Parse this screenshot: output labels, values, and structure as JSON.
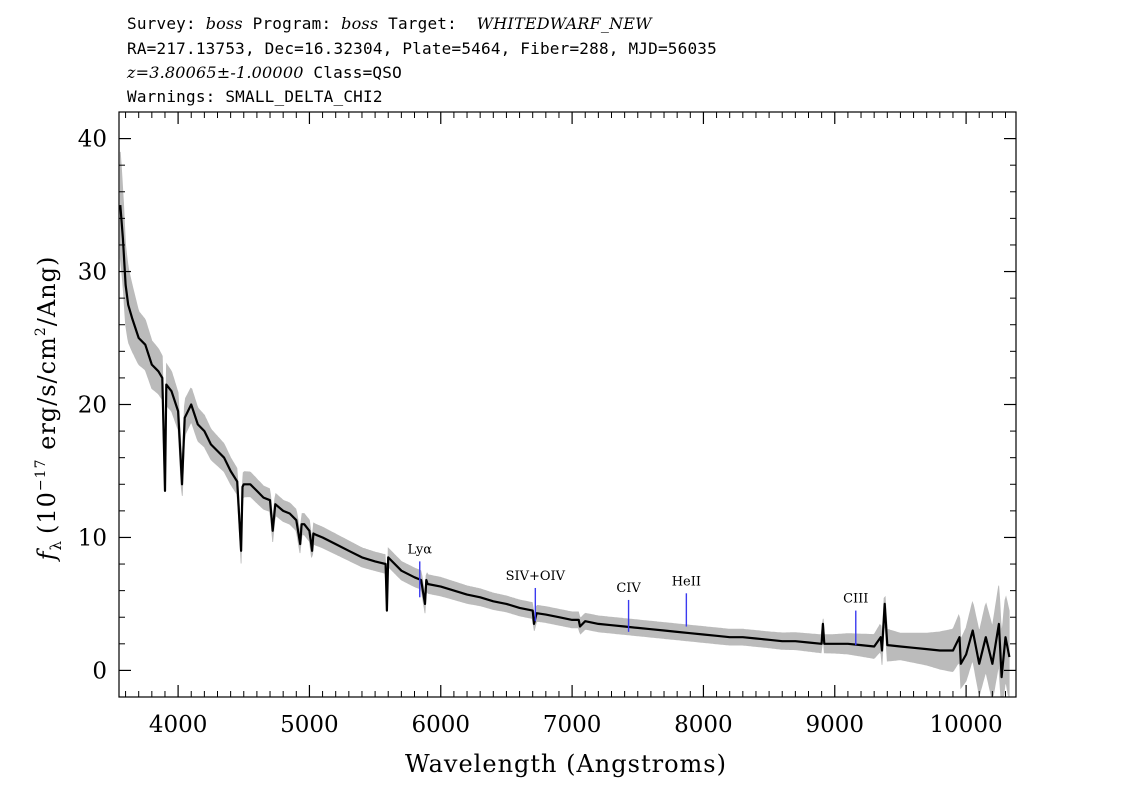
{
  "header": {
    "line1": {
      "survey_label": "Survey:",
      "survey_value": "boss",
      "program_label": "Program:",
      "program_value": "boss",
      "target_label": "Target:",
      "target_value": "WHITEDWARF_NEW"
    },
    "line2": "RA=217.13753, Dec=16.32304, Plate=5464, Fiber=288, MJD=56035",
    "line3": {
      "z_text": "z=3.80065±-1.00000",
      "class_text": "Class=QSO"
    },
    "line4": "Warnings: SMALL_DELTA_CHI2"
  },
  "chart_data": {
    "type": "line",
    "xlabel": "Wavelength (Angstroms)",
    "ylabel_parts": {
      "f": "f",
      "sub": "λ",
      "pre": "(10",
      "exp1": "−17",
      "mid": " erg/s/cm",
      "exp2": "2",
      "post": "/Ang)"
    },
    "xlim": [
      3550,
      10380
    ],
    "ylim": [
      -2,
      42
    ],
    "xticks": [
      4000,
      5000,
      6000,
      7000,
      8000,
      9000,
      10000
    ],
    "yticks": [
      0,
      10,
      20,
      30,
      40
    ],
    "grid": false,
    "series": [
      {
        "role": "flux",
        "color": "#000000",
        "x": [
          3560,
          3580,
          3600,
          3620,
          3650,
          3700,
          3750,
          3800,
          3850,
          3880,
          3900,
          3910,
          3950,
          4000,
          4030,
          4050,
          4100,
          4150,
          4200,
          4250,
          4300,
          4350,
          4400,
          4450,
          4480,
          4490,
          4500,
          4550,
          4600,
          4650,
          4700,
          4720,
          4740,
          4800,
          4850,
          4900,
          4930,
          4940,
          4960,
          5000,
          5020,
          5030,
          5050,
          5100,
          5200,
          5300,
          5400,
          5500,
          5580,
          5590,
          5600,
          5700,
          5800,
          5850,
          5880,
          5890,
          5900,
          6000,
          6100,
          6200,
          6300,
          6400,
          6500,
          6600,
          6700,
          6710,
          6730,
          6800,
          6900,
          7000,
          7050,
          7060,
          7100,
          7200,
          7300,
          7400,
          7500,
          7600,
          7700,
          7800,
          7900,
          8000,
          8100,
          8200,
          8300,
          8400,
          8500,
          8600,
          8700,
          8800,
          8900,
          8910,
          8920,
          9000,
          9100,
          9200,
          9300,
          9350,
          9360,
          9380,
          9400,
          9500,
          9600,
          9700,
          9800,
          9900,
          9950,
          9960,
          10000,
          10050,
          10100,
          10150,
          10200,
          10250,
          10270,
          10300,
          10330
        ],
        "y": [
          35.0,
          32.5,
          29.0,
          27.5,
          26.5,
          25.0,
          24.5,
          23.0,
          22.5,
          22.0,
          13.5,
          21.5,
          21.0,
          19.5,
          14.0,
          19.0,
          20.0,
          18.5,
          18.0,
          17.0,
          16.5,
          16.0,
          15.0,
          14.2,
          9.0,
          13.8,
          14.0,
          14.0,
          13.5,
          13.0,
          12.8,
          10.5,
          12.5,
          12.0,
          11.8,
          11.3,
          9.5,
          11.0,
          11.0,
          10.5,
          9.0,
          10.3,
          10.2,
          10.0,
          9.5,
          9.0,
          8.5,
          8.2,
          8.0,
          4.5,
          8.5,
          7.5,
          7.0,
          6.8,
          5.0,
          6.8,
          6.5,
          6.3,
          6.0,
          5.7,
          5.5,
          5.2,
          5.0,
          4.7,
          4.5,
          3.5,
          4.3,
          4.2,
          4.0,
          3.8,
          3.8,
          3.3,
          3.7,
          3.5,
          3.4,
          3.3,
          3.2,
          3.1,
          3.0,
          2.9,
          2.8,
          2.7,
          2.6,
          2.5,
          2.5,
          2.4,
          2.3,
          2.2,
          2.2,
          2.1,
          2.0,
          3.5,
          2.0,
          2.0,
          2.0,
          1.9,
          1.8,
          2.5,
          1.5,
          5.0,
          1.9,
          1.8,
          1.7,
          1.6,
          1.5,
          1.5,
          2.5,
          0.5,
          1.2,
          3.0,
          0.5,
          2.5,
          0.5,
          3.5,
          -0.5,
          2.5,
          1.0
        ]
      },
      {
        "role": "error",
        "color": "#bbbbbb",
        "x": [
          3560,
          3600,
          3700,
          3800,
          3900,
          4000,
          4200,
          4400,
          4600,
          4800,
          5000,
          5500,
          6000,
          6500,
          7000,
          7500,
          8000,
          8500,
          9000,
          9300,
          9400,
          9500,
          9700,
          9900,
          10000,
          10100,
          10200,
          10300,
          10330
        ],
        "y": [
          4.0,
          3.0,
          2.0,
          1.8,
          1.6,
          1.4,
          1.2,
          1.0,
          0.9,
          0.8,
          0.8,
          0.7,
          0.7,
          0.6,
          0.6,
          0.6,
          0.6,
          0.6,
          0.7,
          0.9,
          1.2,
          1.0,
          1.2,
          1.6,
          2.0,
          2.4,
          2.8,
          3.2,
          3.4
        ]
      }
    ],
    "line_markers": [
      {
        "label": "Lyα",
        "x": 5840,
        "y_top": 8.2,
        "y_bottom": 5.5,
        "color": "#3a3af0"
      },
      {
        "label": "SIV+OIV",
        "x": 6720,
        "y_top": 6.2,
        "y_bottom": 3.7,
        "color": "#3a3af0"
      },
      {
        "label": "CIV",
        "x": 7430,
        "y_top": 5.3,
        "y_bottom": 2.9,
        "color": "#3a3af0"
      },
      {
        "label": "HeII",
        "x": 7870,
        "y_top": 5.8,
        "y_bottom": 3.3,
        "color": "#3a3af0"
      },
      {
        "label": "CIII",
        "x": 9160,
        "y_top": 4.5,
        "y_bottom": 1.9,
        "color": "#3a3af0"
      }
    ]
  }
}
